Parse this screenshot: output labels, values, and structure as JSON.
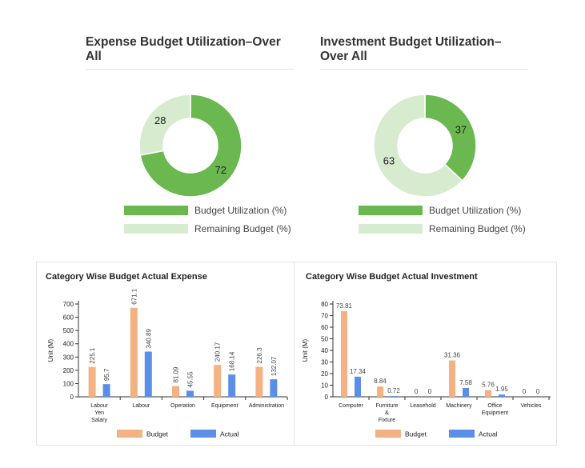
{
  "colors": {
    "donut_primary": "#6ab84f",
    "donut_secondary": "#d7ebce",
    "bar_budget": "#f4b183",
    "bar_actual": "#5b8ee6"
  },
  "expense_donut": {
    "title_line1": "Expense Budget Utilization–Over",
    "title_line2": "All",
    "legend": [
      "Budget Utilization (%)",
      "Remaining Budget (%)"
    ]
  },
  "investment_donut": {
    "title_line1": "Investment Budget Utilization–",
    "title_line2": "Over All",
    "legend": [
      "Budget Utilization (%)",
      "Remaining Budget (%)"
    ]
  },
  "expense_bar": {
    "title": "Category Wise Budget Actual Expense"
  },
  "investment_bar": {
    "title": "Category Wise Budget Actual Investment"
  },
  "chart_data": [
    {
      "type": "pie",
      "title": "Expense Budget Utilization–Over All",
      "categories": [
        "Budget Utilization (%)",
        "Remaining Budget (%)"
      ],
      "values": [
        72,
        28
      ],
      "labels": [
        "72",
        "28"
      ]
    },
    {
      "type": "pie",
      "title": "Investment Budget Utilization–Over All",
      "categories": [
        "Budget Utilization (%)",
        "Remaining Budget (%)"
      ],
      "values": [
        37,
        63
      ],
      "labels": [
        "37",
        "63"
      ]
    },
    {
      "type": "bar",
      "title": "Category Wise Budget Actual Expense",
      "ylabel": "Unit (M)",
      "ylim": [
        0,
        700
      ],
      "yticks": [
        0,
        100,
        200,
        300,
        400,
        500,
        600,
        700
      ],
      "categories": [
        [
          "Labour",
          "Yen",
          "Salary"
        ],
        [
          "Labour"
        ],
        [
          "Operation"
        ],
        [
          "Equipment"
        ],
        [
          "Administration"
        ]
      ],
      "series": [
        {
          "name": "Budget",
          "values": [
            225.1,
            671.1,
            81.09,
            240.17,
            226.3
          ],
          "labels": [
            "225.1",
            "671.1",
            "81.09",
            "240.17",
            "226.3"
          ]
        },
        {
          "name": "Actual",
          "values": [
            95.7,
            340.89,
            45.55,
            168.14,
            132.07
          ],
          "labels": [
            "95.7",
            "340.89",
            "45.55",
            "168.14",
            "132.07"
          ]
        }
      ],
      "label_rotation": "vertical"
    },
    {
      "type": "bar",
      "title": "Category Wise Budget Actual Investment",
      "ylabel": "Unit (M)",
      "ylim": [
        0,
        80
      ],
      "yticks": [
        0,
        10,
        20,
        30,
        40,
        50,
        60,
        70,
        80
      ],
      "categories": [
        [
          "Computer"
        ],
        [
          "Furniture",
          "&",
          "Fixture"
        ],
        [
          "Leasehold"
        ],
        [
          "Machinery"
        ],
        [
          "Office",
          "Equipment"
        ],
        [
          "Vehicles"
        ]
      ],
      "series": [
        {
          "name": "Budget",
          "values": [
            73.81,
            8.84,
            0,
            31.36,
            5.76,
            0
          ],
          "labels": [
            "73.81",
            "8.84",
            "0",
            "31.36",
            "5.76",
            "0"
          ]
        },
        {
          "name": "Actual",
          "values": [
            17.34,
            0.72,
            0,
            7.58,
            1.95,
            0
          ],
          "labels": [
            "17.34",
            "0.72",
            "0",
            "7.58",
            "1.95",
            "0"
          ]
        }
      ],
      "label_rotation": "horizontal"
    }
  ]
}
